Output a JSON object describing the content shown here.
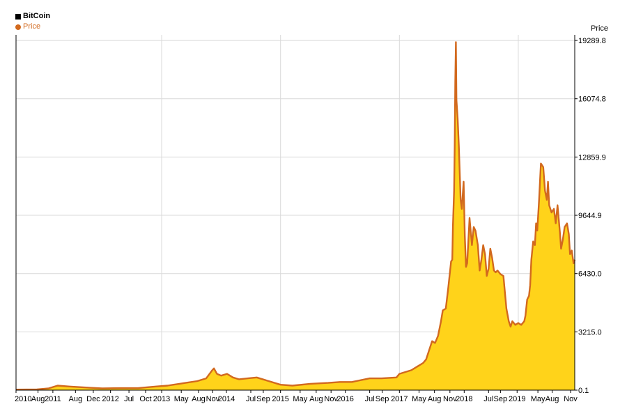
{
  "legend": {
    "title": "BitCoin",
    "series_label": "Price"
  },
  "colors": {
    "line": "#d2691e",
    "fill": "#ffd31a",
    "grid": "#d9d9d9",
    "axis": "#000000"
  },
  "chart_data": {
    "type": "area",
    "title": "BitCoin",
    "ylabel": "Price",
    "y_axis_side": "right",
    "grid": true,
    "ylim": [
      0.1,
      19600
    ],
    "xlim": [
      2010.55,
      2019.95
    ],
    "yticks": [
      "0.1",
      "3215.0",
      "6430.0",
      "9644.9",
      "12859.9",
      "16074.8",
      "19289.8"
    ],
    "ytick_values": [
      0.1,
      3215.0,
      6430.0,
      9644.9,
      12859.9,
      16074.8,
      19289.8
    ],
    "xticks": [
      {
        "label": "2010",
        "x": 2010.55
      },
      {
        "label": "Aug",
        "x": 2010.92
      },
      {
        "label": "2011",
        "x": 2011.17
      },
      {
        "label": "Aug",
        "x": 2011.55
      },
      {
        "label": "Dec",
        "x": 2011.85
      },
      {
        "label": "2012",
        "x": 2012.14
      },
      {
        "label": "Jul",
        "x": 2012.45
      },
      {
        "label": "Oct",
        "x": 2012.73
      },
      {
        "label": "2013",
        "x": 2013.0
      },
      {
        "label": "May",
        "x": 2013.33
      },
      {
        "label": "Aug",
        "x": 2013.62
      },
      {
        "label": "Nov",
        "x": 2013.86
      },
      {
        "label": "2014",
        "x": 2014.09
      },
      {
        "label": "Jul",
        "x": 2014.5
      },
      {
        "label": "Sep",
        "x": 2014.71
      },
      {
        "label": "2015",
        "x": 2015.0
      },
      {
        "label": "May",
        "x": 2015.33
      },
      {
        "label": "Aug",
        "x": 2015.6
      },
      {
        "label": "Nov",
        "x": 2015.85
      },
      {
        "label": "2016",
        "x": 2016.09
      },
      {
        "label": "Jul",
        "x": 2016.5
      },
      {
        "label": "Sep",
        "x": 2016.71
      },
      {
        "label": "2017",
        "x": 2017.0
      },
      {
        "label": "May",
        "x": 2017.33
      },
      {
        "label": "Aug",
        "x": 2017.59
      },
      {
        "label": "Nov",
        "x": 2017.85
      },
      {
        "label": "2018",
        "x": 2018.09
      },
      {
        "label": "Jul",
        "x": 2018.5
      },
      {
        "label": "Sep",
        "x": 2018.7
      },
      {
        "label": "2019",
        "x": 2018.98
      },
      {
        "label": "May",
        "x": 2019.33
      },
      {
        "label": "Aug",
        "x": 2019.57
      },
      {
        "label": "Nov",
        "x": 2019.88
      }
    ],
    "vgrid_x": [
      2013.0,
      2015.0,
      2017.0,
      2019.0
    ],
    "series": [
      {
        "name": "Price",
        "x": [
          2010.55,
          2010.9,
          2011.1,
          2011.25,
          2011.45,
          2011.7,
          2012.0,
          2012.3,
          2012.6,
          2012.9,
          2013.1,
          2013.2,
          2013.3,
          2013.4,
          2013.6,
          2013.75,
          2013.85,
          2013.88,
          2013.93,
          2014.0,
          2014.1,
          2014.2,
          2014.3,
          2014.45,
          2014.6,
          2014.8,
          2015.0,
          2015.2,
          2015.5,
          2015.8,
          2016.0,
          2016.2,
          2016.5,
          2016.7,
          2016.95,
          2017.0,
          2017.1,
          2017.2,
          2017.3,
          2017.4,
          2017.45,
          2017.55,
          2017.6,
          2017.65,
          2017.7,
          2017.73,
          2017.78,
          2017.82,
          2017.87,
          2017.89,
          2017.9,
          2017.92,
          2017.93,
          2017.94,
          2017.95,
          2017.96,
          2017.98,
          2018.0,
          2018.03,
          2018.05,
          2018.08,
          2018.1,
          2018.12,
          2018.14,
          2018.18,
          2018.22,
          2018.25,
          2018.28,
          2018.32,
          2018.35,
          2018.38,
          2018.41,
          2018.44,
          2018.47,
          2018.5,
          2018.53,
          2018.56,
          2018.59,
          2018.62,
          2018.65,
          2018.7,
          2018.75,
          2018.8,
          2018.84,
          2018.87,
          2018.9,
          2018.95,
          2019.0,
          2019.05,
          2019.1,
          2019.12,
          2019.15,
          2019.18,
          2019.2,
          2019.22,
          2019.25,
          2019.28,
          2019.3,
          2019.32,
          2019.35,
          2019.38,
          2019.42,
          2019.45,
          2019.48,
          2019.5,
          2019.52,
          2019.56,
          2019.6,
          2019.63,
          2019.66,
          2019.7,
          2019.72,
          2019.75,
          2019.78,
          2019.82,
          2019.85,
          2019.87,
          2019.9,
          2019.93,
          2019.95
        ],
        "values": [
          30,
          40,
          100,
          250,
          200,
          150,
          100,
          110,
          110,
          200,
          250,
          300,
          350,
          400,
          500,
          650,
          1100,
          1200,
          900,
          800,
          900,
          700,
          600,
          650,
          700,
          500,
          300,
          250,
          350,
          400,
          450,
          450,
          650,
          650,
          700,
          900,
          1000,
          1100,
          1300,
          1500,
          1700,
          2700,
          2600,
          3000,
          3800,
          4400,
          4500,
          5600,
          7100,
          7200,
          9000,
          11000,
          13500,
          17000,
          19200,
          16000,
          15000,
          13500,
          10500,
          10000,
          11500,
          8500,
          6800,
          7000,
          9500,
          8000,
          9000,
          8800,
          8000,
          6600,
          7200,
          8000,
          7500,
          6300,
          6700,
          7800,
          7300,
          6600,
          6500,
          6600,
          6400,
          6300,
          4500,
          3800,
          3500,
          3800,
          3600,
          3700,
          3600,
          3800,
          4100,
          5000,
          5200,
          5800,
          7200,
          8200,
          8000,
          9200,
          8800,
          10500,
          12500,
          12300,
          11000,
          10500,
          11500,
          10200,
          9800,
          10000,
          9200,
          10200,
          8700,
          7800,
          8300,
          9000,
          9200,
          8600,
          7500,
          7700,
          7000,
          7200
        ]
      }
    ]
  }
}
